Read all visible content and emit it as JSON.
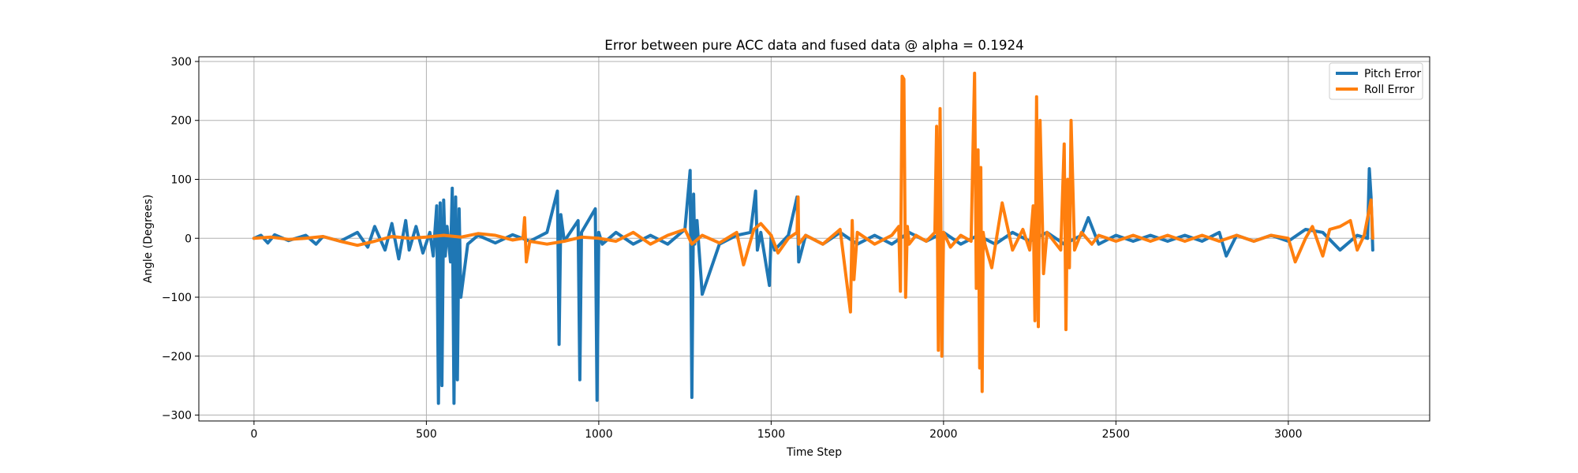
{
  "chart_data": {
    "type": "line",
    "title": "Error between pure ACC data and fused data @ alpha = 0.1924",
    "xlabel": "Time Step",
    "ylabel": "Angle (Degrees)",
    "xlim": [
      -160,
      3410
    ],
    "ylim": [
      -310,
      308
    ],
    "xticks": [
      0,
      500,
      1000,
      1500,
      2000,
      2500,
      3000
    ],
    "yticks": [
      -300,
      -200,
      -100,
      0,
      100,
      200,
      300
    ],
    "xtick_labels": [
      "0",
      "500",
      "1000",
      "1500",
      "2000",
      "2500",
      "3000"
    ],
    "ytick_labels": [
      "−300",
      "−200",
      "−100",
      "0",
      "100",
      "200",
      "300"
    ],
    "grid": true,
    "legend_position": "top-right",
    "series": [
      {
        "name": "Pitch Error",
        "color": "#1f77b4",
        "x": [
          0,
          20,
          40,
          60,
          100,
          150,
          180,
          200,
          250,
          300,
          330,
          350,
          380,
          400,
          420,
          440,
          450,
          470,
          490,
          510,
          520,
          530,
          535,
          540,
          545,
          550,
          555,
          560,
          570,
          575,
          580,
          585,
          590,
          595,
          600,
          620,
          650,
          700,
          750,
          800,
          850,
          880,
          885,
          890,
          900,
          940,
          945,
          950,
          990,
          995,
          1000,
          1010,
          1050,
          1100,
          1150,
          1200,
          1250,
          1265,
          1270,
          1275,
          1278,
          1285,
          1300,
          1350,
          1400,
          1440,
          1455,
          1460,
          1470,
          1495,
          1500,
          1510,
          1550,
          1575,
          1580,
          1600,
          1650,
          1700,
          1750,
          1800,
          1850,
          1900,
          1950,
          2000,
          2050,
          2100,
          2150,
          2200,
          2250,
          2300,
          2350,
          2400,
          2420,
          2450,
          2500,
          2550,
          2600,
          2650,
          2700,
          2750,
          2800,
          2820,
          2850,
          2900,
          2950,
          3000,
          3050,
          3100,
          3150,
          3200,
          3230,
          3235,
          3240,
          3245
        ],
        "y": [
          0,
          5,
          -8,
          6,
          -4,
          5,
          -10,
          3,
          -5,
          10,
          -15,
          20,
          -20,
          25,
          -35,
          30,
          -20,
          20,
          -25,
          10,
          -30,
          55,
          -280,
          60,
          -250,
          65,
          -30,
          20,
          -40,
          85,
          -280,
          70,
          -240,
          50,
          -100,
          -10,
          5,
          -8,
          6,
          -5,
          10,
          80,
          -180,
          40,
          -5,
          30,
          -240,
          10,
          50,
          -275,
          10,
          -10,
          10,
          -10,
          5,
          -10,
          15,
          115,
          -270,
          75,
          -10,
          30,
          -95,
          -10,
          5,
          10,
          80,
          -20,
          10,
          -80,
          5,
          -20,
          5,
          70,
          -40,
          5,
          -10,
          10,
          -10,
          5,
          -10,
          10,
          -5,
          10,
          -10,
          5,
          -10,
          10,
          -5,
          10,
          -10,
          5,
          35,
          -10,
          5,
          -5,
          5,
          -5,
          5,
          -5,
          10,
          -30,
          5,
          -5,
          5,
          -5,
          15,
          10,
          -20,
          5,
          0,
          118,
          70,
          -20
        ]
      },
      {
        "name": "Roll Error",
        "color": "#ff7f0e",
        "x": [
          0,
          50,
          100,
          150,
          200,
          250,
          300,
          350,
          400,
          450,
          500,
          550,
          600,
          650,
          700,
          750,
          780,
          785,
          790,
          800,
          850,
          900,
          950,
          1000,
          1050,
          1100,
          1150,
          1200,
          1250,
          1270,
          1300,
          1350,
          1400,
          1420,
          1450,
          1470,
          1500,
          1520,
          1550,
          1575,
          1578,
          1580,
          1600,
          1650,
          1700,
          1730,
          1735,
          1740,
          1750,
          1800,
          1850,
          1870,
          1875,
          1880,
          1885,
          1890,
          1895,
          1900,
          1920,
          1950,
          1975,
          1980,
          1985,
          1990,
          1995,
          2000,
          2020,
          2050,
          2080,
          2090,
          2095,
          2100,
          2105,
          2108,
          2112,
          2115,
          2120,
          2140,
          2170,
          2200,
          2230,
          2250,
          2260,
          2265,
          2270,
          2275,
          2280,
          2290,
          2300,
          2340,
          2350,
          2355,
          2360,
          2365,
          2370,
          2380,
          2400,
          2430,
          2450,
          2500,
          2550,
          2600,
          2650,
          2700,
          2750,
          2800,
          2850,
          2900,
          2950,
          3000,
          3020,
          3050,
          3070,
          3100,
          3120,
          3150,
          3180,
          3200,
          3220,
          3240,
          3245
        ],
        "y": [
          0,
          2,
          -2,
          0,
          3,
          -5,
          -12,
          -5,
          3,
          0,
          2,
          5,
          2,
          8,
          5,
          -3,
          0,
          35,
          -40,
          -5,
          -10,
          -5,
          2,
          0,
          -5,
          10,
          -10,
          5,
          15,
          -10,
          5,
          -8,
          10,
          -45,
          15,
          25,
          5,
          -25,
          0,
          10,
          70,
          -10,
          5,
          -10,
          15,
          -125,
          30,
          -70,
          10,
          -10,
          5,
          20,
          -90,
          275,
          270,
          -100,
          20,
          -10,
          5,
          -5,
          10,
          190,
          -190,
          220,
          -200,
          10,
          -15,
          5,
          -5,
          280,
          -85,
          150,
          -220,
          120,
          -260,
          10,
          -10,
          -50,
          60,
          -20,
          15,
          -20,
          55,
          -140,
          240,
          -150,
          200,
          -60,
          10,
          -20,
          160,
          -155,
          100,
          -50,
          200,
          -20,
          10,
          -10,
          5,
          -5,
          5,
          -5,
          5,
          -5,
          5,
          -5,
          5,
          -5,
          5,
          0,
          -40,
          0,
          20,
          -30,
          15,
          20,
          30,
          -20,
          5,
          65,
          0
        ]
      }
    ]
  }
}
